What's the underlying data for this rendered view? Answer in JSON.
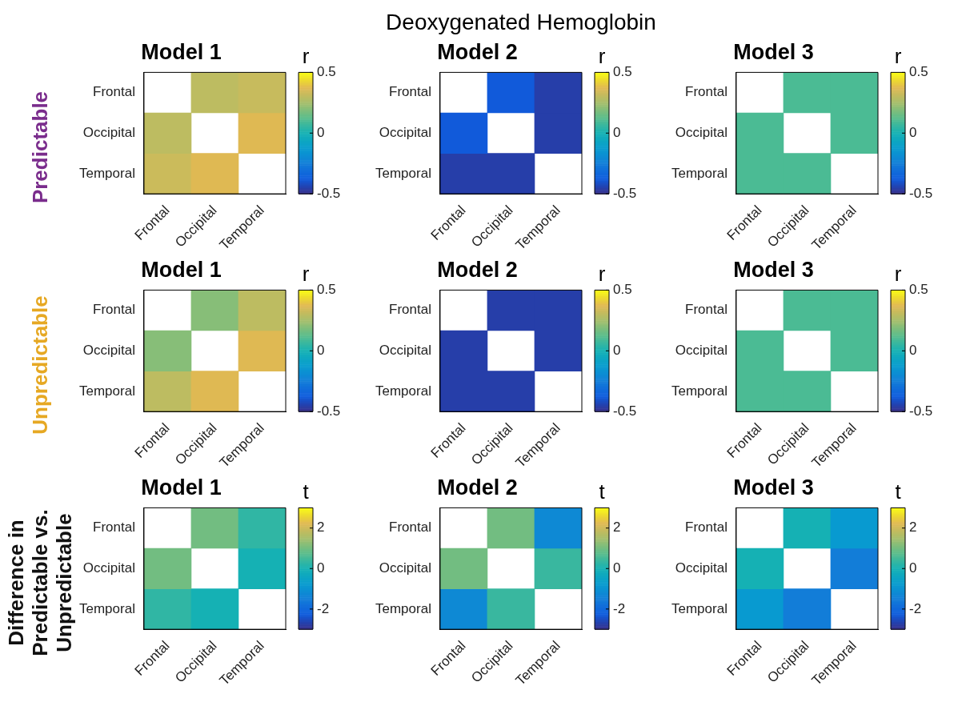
{
  "chart_data": [
    {
      "type": "heatmap",
      "title": "Model 1",
      "ylabel": "Predictable",
      "clabel": "r",
      "annotations": [
        "Deoxygenated Hemoglobin"
      ],
      "categories": [
        "Frontal",
        "Occipital",
        "Temporal"
      ],
      "y_categories": [
        "Frontal",
        "Occipital",
        "Temporal"
      ],
      "cells": [
        [
          null,
          0.3,
          0.32
        ],
        [
          0.3,
          null,
          0.37
        ],
        [
          0.33,
          0.37,
          null
        ]
      ],
      "clim": [
        -0.5,
        0.5
      ],
      "cticks": [
        -0.5,
        0,
        0.5
      ]
    },
    {
      "type": "heatmap",
      "title": "Model 2",
      "clabel": "r",
      "categories": [
        "Frontal",
        "Occipital",
        "Temporal"
      ],
      "y_categories": [
        "Frontal",
        "Occipital",
        "Temporal"
      ],
      "cells": [
        [
          null,
          -0.38,
          -0.45
        ],
        [
          -0.38,
          null,
          -0.45
        ],
        [
          -0.45,
          -0.45,
          null
        ]
      ],
      "clim": [
        -0.5,
        0.5
      ],
      "cticks": [
        -0.5,
        0,
        0.5
      ]
    },
    {
      "type": "heatmap",
      "title": "Model 3",
      "clabel": "r",
      "categories": [
        "Frontal",
        "Occipital",
        "Temporal"
      ],
      "y_categories": [
        "Frontal",
        "Occipital",
        "Temporal"
      ],
      "cells": [
        [
          null,
          0.1,
          0.1
        ],
        [
          0.1,
          null,
          0.1
        ],
        [
          0.1,
          0.1,
          null
        ]
      ],
      "clim": [
        -0.5,
        0.5
      ],
      "cticks": [
        -0.5,
        0,
        0.5
      ]
    },
    {
      "type": "heatmap",
      "title": "Model 1",
      "ylabel": "Unpredictable",
      "clabel": "r",
      "categories": [
        "Frontal",
        "Occipital",
        "Temporal"
      ],
      "y_categories": [
        "Frontal",
        "Occipital",
        "Temporal"
      ],
      "cells": [
        [
          null,
          0.2,
          0.3
        ],
        [
          0.2,
          null,
          0.37
        ],
        [
          0.3,
          0.37,
          null
        ]
      ],
      "clim": [
        -0.5,
        0.5
      ],
      "cticks": [
        -0.5,
        0,
        0.5
      ]
    },
    {
      "type": "heatmap",
      "title": "Model 2",
      "clabel": "r",
      "categories": [
        "Frontal",
        "Occipital",
        "Temporal"
      ],
      "y_categories": [
        "Frontal",
        "Occipital",
        "Temporal"
      ],
      "cells": [
        [
          null,
          -0.45,
          -0.45
        ],
        [
          -0.45,
          null,
          -0.45
        ],
        [
          -0.45,
          -0.45,
          null
        ]
      ],
      "clim": [
        -0.5,
        0.5
      ],
      "cticks": [
        -0.5,
        0,
        0.5
      ]
    },
    {
      "type": "heatmap",
      "title": "Model 3",
      "clabel": "r",
      "categories": [
        "Frontal",
        "Occipital",
        "Temporal"
      ],
      "y_categories": [
        "Frontal",
        "Occipital",
        "Temporal"
      ],
      "cells": [
        [
          null,
          0.1,
          0.1
        ],
        [
          0.1,
          null,
          0.1
        ],
        [
          0.1,
          0.1,
          null
        ]
      ],
      "clim": [
        -0.5,
        0.5
      ],
      "cticks": [
        -0.5,
        0,
        0.5
      ]
    },
    {
      "type": "heatmap",
      "title": "Model 1",
      "ylabel": "Difference in Predictable vs. Unpredictable",
      "clabel": "t",
      "categories": [
        "Frontal",
        "Occipital",
        "Temporal"
      ],
      "y_categories": [
        "Frontal",
        "Occipital",
        "Temporal"
      ],
      "cells": [
        [
          null,
          1,
          0.3
        ],
        [
          1,
          null,
          0
        ],
        [
          0.3,
          0,
          null
        ]
      ],
      "clim": [
        -3,
        3
      ],
      "cticks": [
        -2,
        0,
        2
      ]
    },
    {
      "type": "heatmap",
      "title": "Model 2",
      "clabel": "t",
      "categories": [
        "Frontal",
        "Occipital",
        "Temporal"
      ],
      "y_categories": [
        "Frontal",
        "Occipital",
        "Temporal"
      ],
      "cells": [
        [
          null,
          1,
          -1.2
        ],
        [
          1,
          null,
          0.4
        ],
        [
          -1.2,
          0.4,
          null
        ]
      ],
      "clim": [
        -3,
        3
      ],
      "cticks": [
        -2,
        0,
        2
      ]
    },
    {
      "type": "heatmap",
      "title": "Model 3",
      "clabel": "t",
      "categories": [
        "Frontal",
        "Occipital",
        "Temporal"
      ],
      "y_categories": [
        "Frontal",
        "Occipital",
        "Temporal"
      ],
      "cells": [
        [
          null,
          0,
          -0.8
        ],
        [
          0,
          null,
          -1.5
        ],
        [
          -0.8,
          -1.5,
          null
        ]
      ],
      "clim": [
        -3,
        3
      ],
      "cticks": [
        -2,
        0,
        2
      ]
    }
  ]
}
